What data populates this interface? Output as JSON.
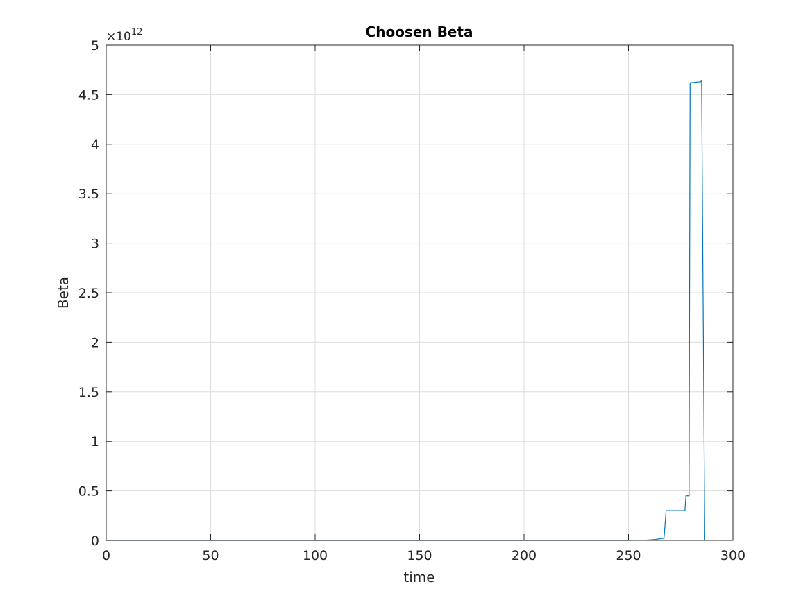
{
  "chart_data": {
    "type": "line",
    "title": "Choosen Beta",
    "xlabel": "time",
    "ylabel": "Beta",
    "xlim": [
      0,
      300
    ],
    "ylim": [
      0,
      5
    ],
    "xticks": [
      0,
      50,
      100,
      150,
      200,
      250,
      300
    ],
    "yticks": [
      0,
      0.5,
      1,
      1.5,
      2,
      2.5,
      3,
      3.5,
      4,
      4.5,
      5
    ],
    "xtick_labels": [
      "0",
      "50",
      "100",
      "150",
      "200",
      "250",
      "300"
    ],
    "ytick_labels": [
      "0",
      "0.5",
      "1",
      "1.5",
      "2",
      "2.5",
      "3",
      "3.5",
      "4",
      "4.5",
      "5"
    ],
    "y_exponent": {
      "base": "×10",
      "power": "12"
    },
    "grid": true,
    "line_color": "#0072BD",
    "grid_color": "#dcdcdc",
    "series": [
      {
        "x": [
          0,
          250,
          258,
          263,
          266,
          267,
          268,
          277,
          277.5,
          279,
          279.5,
          284.5,
          285,
          286.5
        ],
        "y": [
          0,
          0,
          0.002,
          0.01,
          0.02,
          0.02,
          0.3,
          0.3,
          0.45,
          0.45,
          4.62,
          4.63,
          4.64,
          0
        ]
      }
    ]
  }
}
